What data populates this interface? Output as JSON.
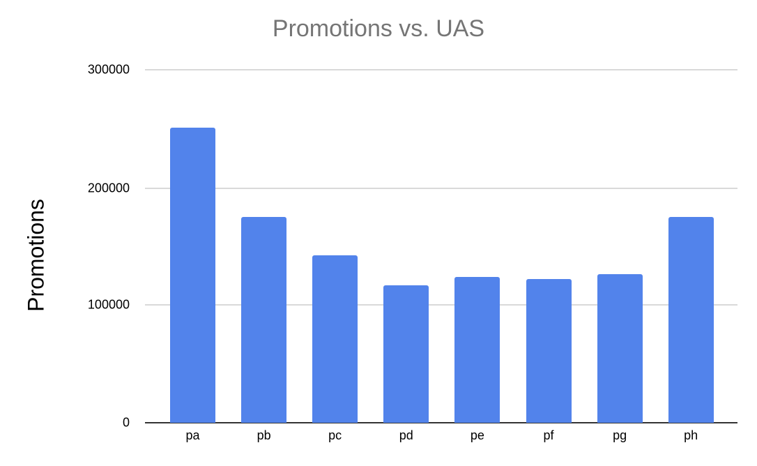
{
  "chart": {
    "title": "Promotions vs. UAS",
    "ylabel": "Promotions",
    "yticks": [
      "300000",
      "200000",
      "100000",
      "0"
    ],
    "bar_color": "#5283eb"
  },
  "chart_data": {
    "type": "bar",
    "title": "Promotions vs. UAS",
    "xlabel": "",
    "ylabel": "Promotions",
    "categories": [
      "pa",
      "pb",
      "pc",
      "pd",
      "pe",
      "pf",
      "pg",
      "ph"
    ],
    "values": [
      251000,
      175000,
      142000,
      117000,
      124000,
      122000,
      126000,
      175000
    ],
    "ylim": [
      0,
      300000
    ],
    "yticks": [
      0,
      100000,
      200000,
      300000
    ],
    "grid": true,
    "legend": null
  }
}
